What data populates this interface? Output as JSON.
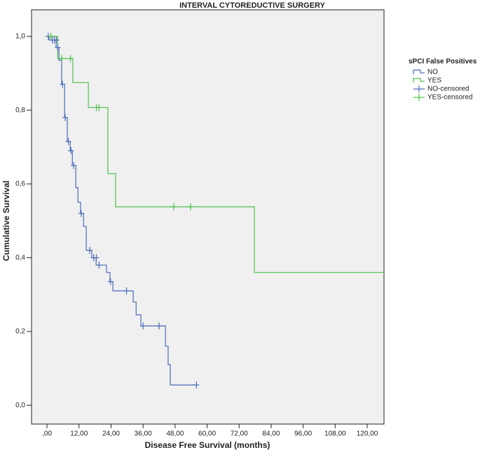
{
  "chart_data": {
    "type": "km",
    "title": "INTERVAL CYTOREDUCTIVE SURGERY",
    "x_label": "Disease Free Survival (months)",
    "y_label": "Cumulative Survival",
    "legend_title": "sPCI False Positives",
    "legend": "right",
    "xlim": [
      -5.8,
      126.3
    ],
    "ylim": [
      -0.051,
      1.072
    ],
    "xticks": [
      {
        "value": 0,
        "label": ",00"
      },
      {
        "value": 12,
        "label": "12,00"
      },
      {
        "value": 24,
        "label": "24,00"
      },
      {
        "value": 36,
        "label": "36,00"
      },
      {
        "value": 48,
        "label": "48,00"
      },
      {
        "value": 60,
        "label": "60,00"
      },
      {
        "value": 72,
        "label": "72,00"
      },
      {
        "value": 84,
        "label": "84,00"
      },
      {
        "value": 96,
        "label": "96,00"
      },
      {
        "value": 108,
        "label": "108,00"
      },
      {
        "value": 120,
        "label": "120,00"
      }
    ],
    "yticks": [
      {
        "value": 0,
        "label": "0,0"
      },
      {
        "value": 0.2,
        "label": "0,2"
      },
      {
        "value": 0.4,
        "label": "0,4"
      },
      {
        "value": 0.6,
        "label": "0,6"
      },
      {
        "value": 0.8,
        "label": "0,8"
      },
      {
        "value": 1,
        "label": "1,0"
      }
    ],
    "series": [
      {
        "name": "NO",
        "color": "#4a6cb8",
        "marker": "step",
        "x": [
          0,
          0.8,
          3.4,
          4.5,
          5.5,
          6.6,
          7.6,
          8.7,
          9.5,
          10.8,
          11.6,
          12.6,
          13.7,
          14.7,
          16.8,
          18.4,
          22.3,
          23.6,
          24.7,
          32.3,
          33.4,
          35.2,
          44.4,
          45.4,
          46.2,
          56
        ],
        "values": [
          1,
          0.99,
          0.97,
          0.935,
          0.87,
          0.78,
          0.715,
          0.69,
          0.65,
          0.59,
          0.55,
          0.52,
          0.485,
          0.42,
          0.4,
          0.38,
          0.36,
          0.335,
          0.31,
          0.28,
          0.245,
          0.215,
          0.16,
          0.11,
          0.055,
          0.055
        ]
      },
      {
        "name": "YES",
        "color": "#4cc04c",
        "marker": "step",
        "x": [
          0,
          4,
          9.7,
          15.5,
          22.8,
          25.7,
          77.7,
          126.3
        ],
        "values": [
          1,
          0.94,
          0.875,
          0.807,
          0.628,
          0.538,
          0.36,
          0.36
        ]
      },
      {
        "name": "NO-censored",
        "color": "#4a6cb8",
        "marker": "plus",
        "x": [
          0.5,
          2,
          2.8,
          3.5,
          4,
          5.8,
          6.8,
          8,
          9,
          10,
          12.8,
          16,
          17.5,
          18.5,
          19.5,
          23.8,
          29.8,
          36,
          42,
          56
        ],
        "values": [
          1,
          0.99,
          0.99,
          0.99,
          0.97,
          0.87,
          0.78,
          0.715,
          0.69,
          0.65,
          0.52,
          0.42,
          0.4,
          0.4,
          0.38,
          0.335,
          0.31,
          0.215,
          0.215,
          0.055
        ]
      },
      {
        "name": "YES-censored",
        "color": "#4cc04c",
        "marker": "plus",
        "x": [
          1.5,
          5.5,
          8.8,
          18.5,
          19.5,
          47.5,
          53.8
        ],
        "values": [
          1,
          0.94,
          0.94,
          0.807,
          0.807,
          0.538,
          0.538
        ]
      }
    ]
  }
}
